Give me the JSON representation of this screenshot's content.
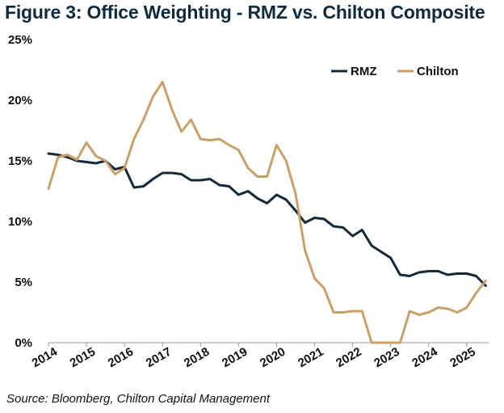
{
  "title": "Figure 3: Office Weighting - RMZ vs. Chilton Composite",
  "source": "Source: Bloomberg, Chilton Capital Management",
  "chart_data": {
    "type": "line",
    "xlabel": "",
    "ylabel": "",
    "x_ticks": [
      "2014",
      "2015",
      "2016",
      "2017",
      "2018",
      "2019",
      "2020",
      "2021",
      "2022",
      "2023",
      "2024",
      "2025"
    ],
    "y_ticks": [
      "0%",
      "5%",
      "10%",
      "15%",
      "20%",
      "25%"
    ],
    "ylim": [
      0,
      25
    ],
    "xlim": [
      2014,
      2025.6
    ],
    "grid": false,
    "legend_position": "top-right",
    "colors": {
      "RMZ": "#14293b",
      "Chilton": "#c9a06a"
    },
    "series": [
      {
        "name": "RMZ",
        "x": [
          2014.0,
          2014.25,
          2014.5,
          2014.75,
          2015.0,
          2015.25,
          2015.5,
          2015.75,
          2016.0,
          2016.25,
          2016.5,
          2016.75,
          2017.0,
          2017.25,
          2017.5,
          2017.75,
          2018.0,
          2018.25,
          2018.5,
          2018.75,
          2019.0,
          2019.25,
          2019.5,
          2019.75,
          2020.0,
          2020.25,
          2020.5,
          2020.75,
          2021.0,
          2021.25,
          2021.5,
          2021.75,
          2022.0,
          2022.25,
          2022.5,
          2022.75,
          2023.0,
          2023.25,
          2023.5,
          2023.75,
          2024.0,
          2024.25,
          2024.5,
          2024.75,
          2025.0,
          2025.25,
          2025.5
        ],
        "values": [
          15.6,
          15.5,
          15.3,
          15.0,
          14.9,
          14.8,
          15.0,
          14.3,
          14.5,
          12.8,
          12.9,
          13.5,
          14.0,
          14.0,
          13.9,
          13.4,
          13.4,
          13.5,
          13.0,
          12.9,
          12.2,
          12.5,
          11.9,
          11.5,
          12.2,
          11.8,
          10.9,
          9.9,
          10.3,
          10.2,
          9.6,
          9.5,
          8.8,
          9.3,
          8.0,
          7.5,
          7.0,
          5.6,
          5.5,
          5.8,
          5.9,
          5.9,
          5.6,
          5.7,
          5.7,
          5.5,
          4.7
        ]
      },
      {
        "name": "Chilton",
        "x": [
          2014.0,
          2014.25,
          2014.5,
          2014.75,
          2015.0,
          2015.25,
          2015.5,
          2015.75,
          2016.0,
          2016.25,
          2016.5,
          2016.75,
          2017.0,
          2017.25,
          2017.5,
          2017.75,
          2018.0,
          2018.25,
          2018.5,
          2018.75,
          2019.0,
          2019.25,
          2019.5,
          2019.75,
          2020.0,
          2020.25,
          2020.5,
          2020.75,
          2021.0,
          2021.25,
          2021.5,
          2021.75,
          2022.0,
          2022.25,
          2022.5,
          2022.75,
          2023.0,
          2023.25,
          2023.5,
          2023.75,
          2024.0,
          2024.25,
          2024.5,
          2024.75,
          2025.0,
          2025.25,
          2025.5
        ],
        "values": [
          12.7,
          15.3,
          15.5,
          15.1,
          16.5,
          15.4,
          15.0,
          13.9,
          14.4,
          16.8,
          18.4,
          20.3,
          21.5,
          19.2,
          17.4,
          18.4,
          16.8,
          16.7,
          16.8,
          16.3,
          15.9,
          14.4,
          13.7,
          13.7,
          16.3,
          15.0,
          12.3,
          7.6,
          5.3,
          4.5,
          2.5,
          2.5,
          2.6,
          2.6,
          0.0,
          0.0,
          0.0,
          0.0,
          2.6,
          2.3,
          2.5,
          2.9,
          2.8,
          2.5,
          2.9,
          4.1,
          5.1
        ]
      }
    ]
  }
}
